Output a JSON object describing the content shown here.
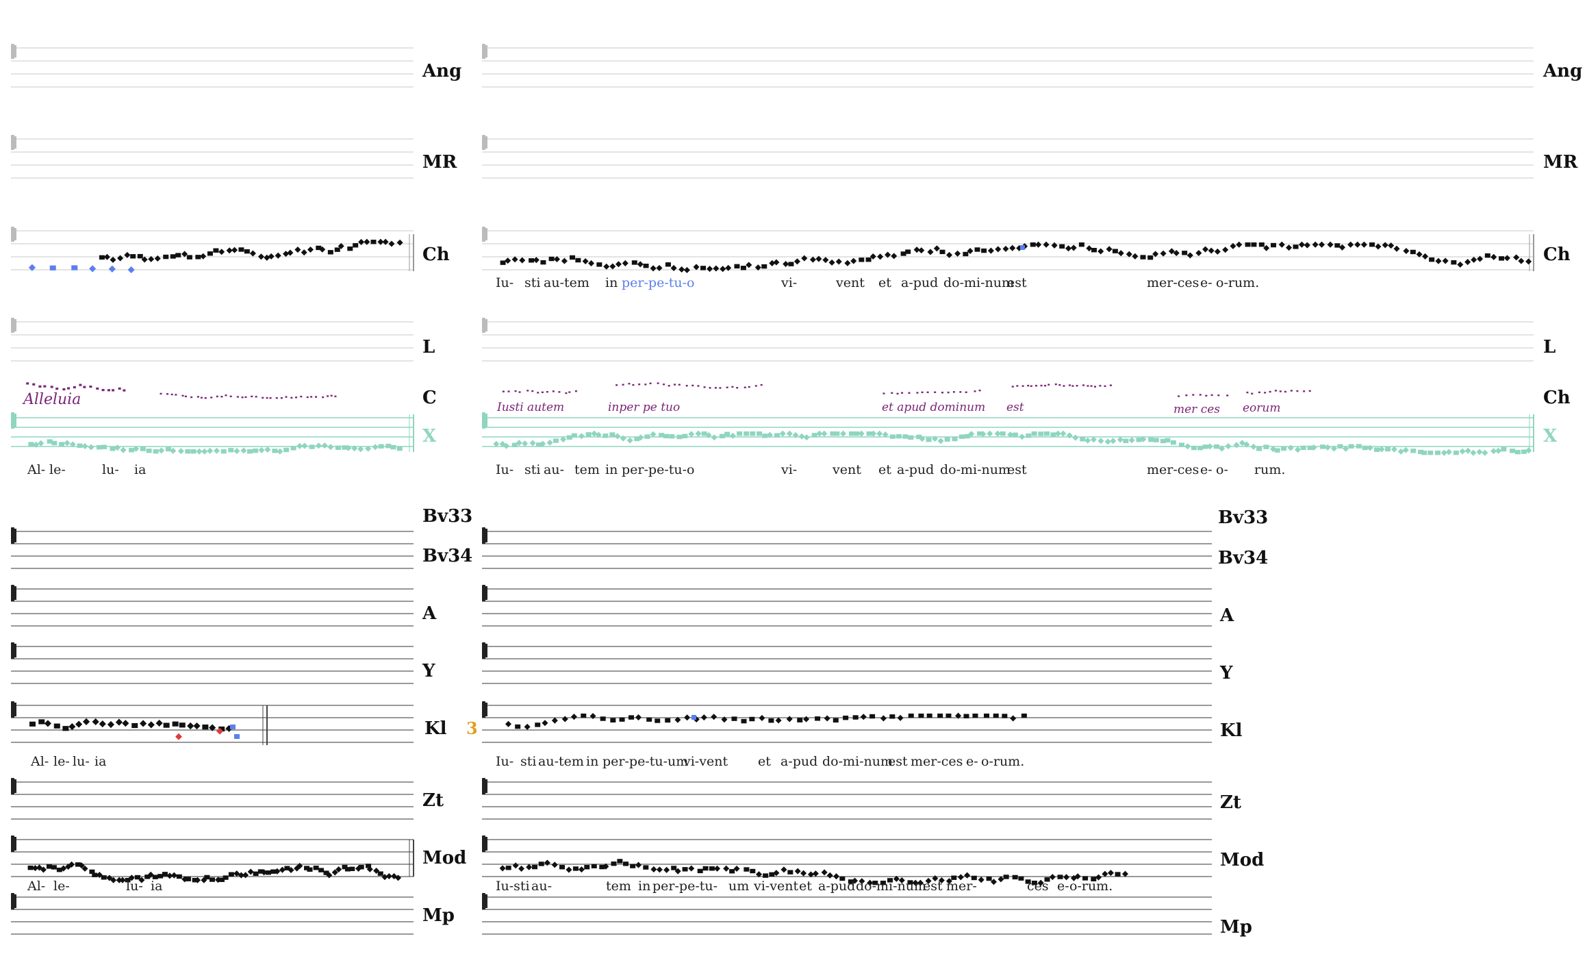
{
  "colors": {
    "staff": "#d4d4d4",
    "staff_dark": "#333333",
    "note": "#111111",
    "highlight_blue": "#5b7ff0",
    "highlight_red": "#e03a3a",
    "neume_purple": "#7a2577",
    "alt_green": "#8fd5c0",
    "measure_gold": "#e0a020"
  },
  "upper_group": {
    "rows": [
      {
        "id": "Ang",
        "left_label": "Ang",
        "right_label": "Ang"
      },
      {
        "id": "MR",
        "left_label": "MR",
        "right_label": "MR"
      },
      {
        "id": "Ch",
        "left_label": "Ch",
        "right_label": "Ch",
        "right_lyrics": [
          "Iu-",
          "sti",
          "au-tem",
          "in",
          "per-pe-tu-o",
          "vi-",
          "vent",
          "et",
          "a-pud",
          "do-mi-num",
          "est",
          "mer-ces",
          "e-",
          "o-rum."
        ]
      },
      {
        "id": "L",
        "left_label": "L",
        "right_label": "L"
      },
      {
        "id": "C",
        "left_label": "C",
        "right_label": "Ch",
        "left_neume_text": "Alleluia",
        "right_neume_text": [
          "Iusti autem",
          "inper pe tuo",
          "et apud dominum",
          "est",
          "mer ces",
          "eorum"
        ]
      },
      {
        "id": "X",
        "left_label": "X",
        "right_label": "X",
        "left_lyrics": [
          "Al-",
          "le-",
          "lu-",
          "ia"
        ],
        "right_lyrics": [
          "Iu-",
          "sti",
          "au-",
          "tem",
          "in",
          "per-pe-tu-o",
          "vi-",
          "vent",
          "et",
          "a-pud",
          "do-mi-num",
          "est",
          "mer-ces",
          "e-",
          "o-",
          "rum."
        ]
      }
    ]
  },
  "lower_group": {
    "rows": [
      {
        "id": "Bv33",
        "label": "Bv33"
      },
      {
        "id": "Bv34",
        "label": "Bv34"
      },
      {
        "id": "A",
        "label": "A"
      },
      {
        "id": "Y",
        "label": "Y"
      },
      {
        "id": "Kl",
        "label": "Kl",
        "measure_number": "3",
        "left_lyrics": [
          "Al-",
          "le-",
          "lu-",
          "ia"
        ],
        "right_lyrics": [
          "Iu-",
          "sti",
          "au-tem",
          "in",
          "per-pe-tu-um",
          "vi-vent",
          "et",
          "a-pud",
          "do-mi-num",
          "est",
          "mer-ces",
          "e-",
          "o-rum."
        ]
      },
      {
        "id": "Zt",
        "label": "Zt"
      },
      {
        "id": "Mod",
        "label": "Mod",
        "left_lyrics": [
          "Al-",
          "le-",
          "lu-",
          "ia"
        ],
        "right_lyrics": [
          "Iu-sti",
          "au-",
          "tem",
          "in",
          "per-pe-tu-",
          "um",
          "vi-vent",
          "et",
          "a-pud",
          "do-mi-num",
          "est",
          "mer-",
          "ces",
          "e-",
          "o-rum."
        ]
      },
      {
        "id": "Mp",
        "label": "Mp"
      }
    ]
  }
}
